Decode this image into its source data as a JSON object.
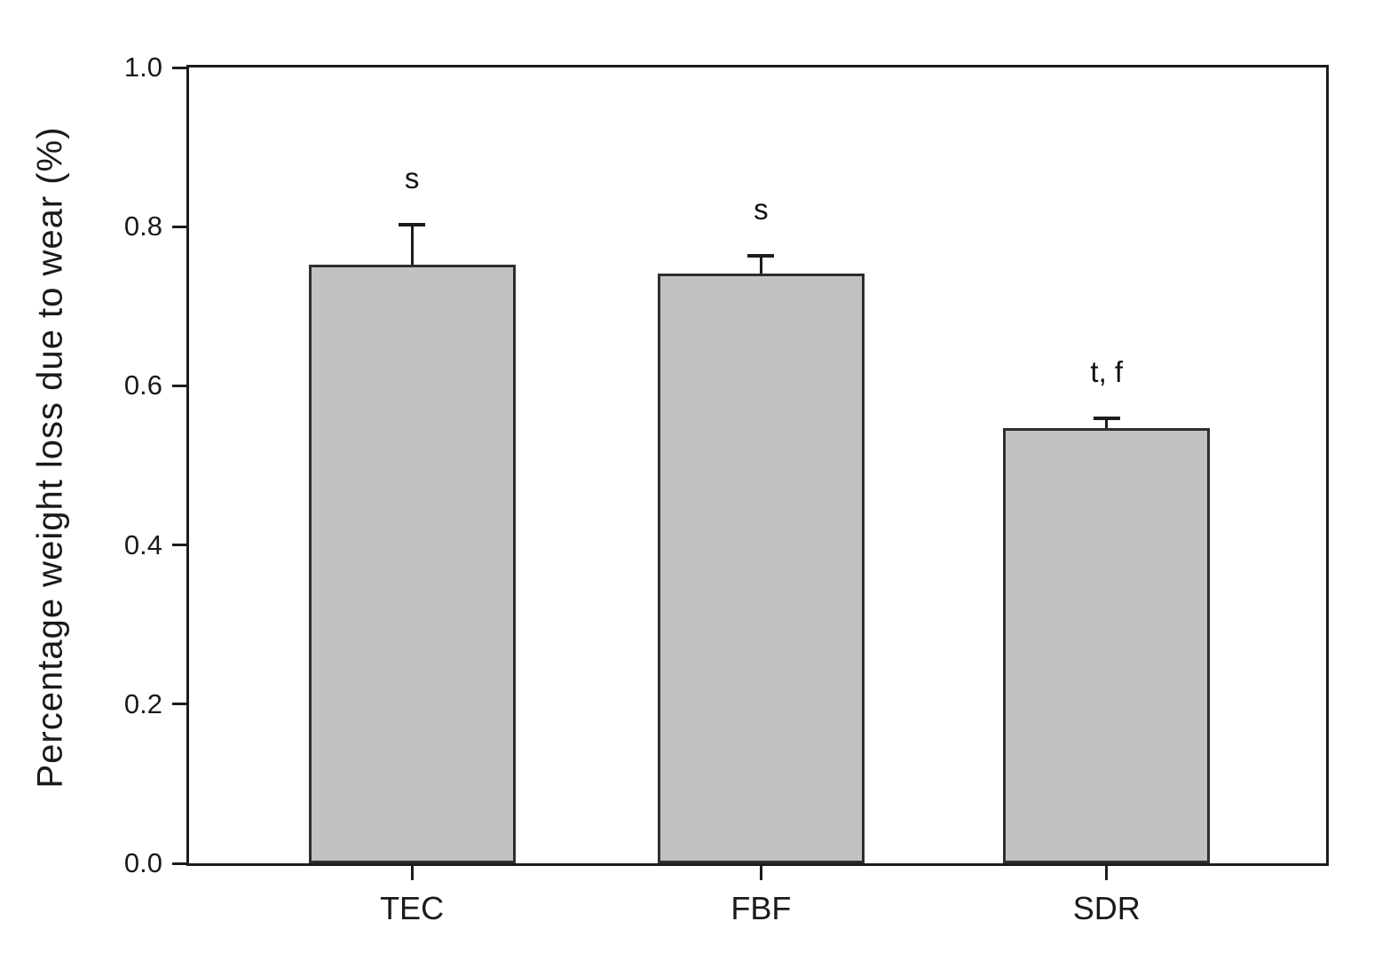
{
  "chart_data": {
    "type": "bar",
    "title": "",
    "xlabel": "",
    "ylabel": "Percentage weight loss due to wear (%)",
    "categories": [
      "TEC",
      "FBF",
      "SDR"
    ],
    "values": [
      0.752,
      0.741,
      0.547
    ],
    "errors_upper": [
      0.051,
      0.022,
      0.012
    ],
    "annotations": [
      "s",
      "s",
      "t, f"
    ],
    "ylim": [
      0.0,
      1.0
    ],
    "yticks": [
      0.0,
      0.2,
      0.4,
      0.6,
      0.8,
      1.0
    ],
    "ytick_labels": [
      "0.0",
      "0.2",
      "0.4",
      "0.6",
      "0.8",
      "1.0"
    ],
    "grid": false,
    "legend": null,
    "bar_fill": "#c2c2c3",
    "bar_border": "#2e2e2e",
    "axis_color": "#1c1c1c",
    "background": "#ffffff"
  }
}
